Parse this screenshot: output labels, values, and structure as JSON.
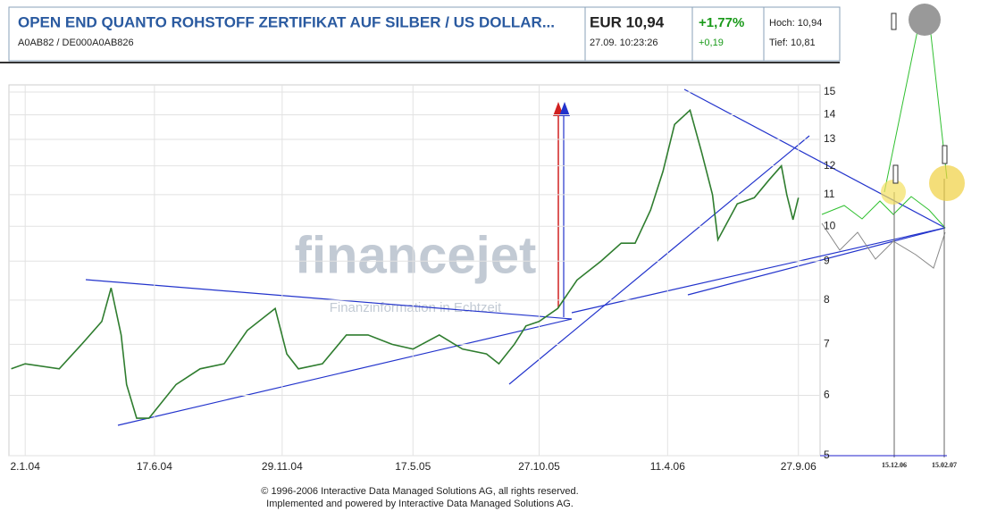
{
  "header": {
    "title": "OPEN END QUANTO ROHSTOFF ZERTIFIKAT AUF SILBER / US DOLLAR...",
    "ids": "A0AB82  /  DE000A0AB826",
    "price": "EUR 10,94",
    "time": "27.09. 10:23:26",
    "change_pct": "+1,77%",
    "change_abs": "+0,19",
    "high": "Hoch: 10,94",
    "low": "Tief: 10,81"
  },
  "chart_data": {
    "type": "line",
    "color": "#2f7d2f",
    "log_scale": true,
    "grid": true,
    "watermark": "financejet",
    "watermark_sub": "Finanzinformation in Echtzeit",
    "x": [
      "2003-12-15",
      "2004-01-02",
      "2004-02-15",
      "2004-03-15",
      "2004-04-10",
      "2004-04-22",
      "2004-05-05",
      "2004-05-12",
      "2004-05-25",
      "2004-06-10",
      "2004-07-15",
      "2004-08-15",
      "2004-09-15",
      "2004-10-15",
      "2004-11-20",
      "2004-12-05",
      "2004-12-20",
      "2005-01-20",
      "2005-02-20",
      "2005-03-20",
      "2005-04-20",
      "2005-05-17",
      "2005-06-20",
      "2005-07-20",
      "2005-08-20",
      "2005-09-05",
      "2005-09-25",
      "2005-10-10",
      "2005-10-27",
      "2005-11-20",
      "2005-12-15",
      "2006-01-15",
      "2006-02-10",
      "2006-02-28",
      "2006-03-20",
      "2006-04-05",
      "2006-04-20",
      "2006-05-10",
      "2006-05-25",
      "2006-06-08",
      "2006-06-15",
      "2006-07-10",
      "2006-08-01",
      "2006-08-20",
      "2006-09-05",
      "2006-09-12",
      "2006-09-20",
      "2006-09-27"
    ],
    "values": [
      6.5,
      6.6,
      6.5,
      7.0,
      7.5,
      8.3,
      7.2,
      6.2,
      5.6,
      5.6,
      6.2,
      6.5,
      6.6,
      7.3,
      7.8,
      6.8,
      6.5,
      6.6,
      7.2,
      7.2,
      7.0,
      6.9,
      7.2,
      6.9,
      6.8,
      6.6,
      7.0,
      7.4,
      7.5,
      7.8,
      8.5,
      9.0,
      9.5,
      9.5,
      10.5,
      11.8,
      13.6,
      14.2,
      12.5,
      11.0,
      9.6,
      10.7,
      10.9,
      11.5,
      12.0,
      11.0,
      10.2,
      10.9
    ],
    "xlim": [
      "2003-12-12",
      "2006-10-25"
    ],
    "xticks": [
      {
        "value": "2004-01-02",
        "label": "2.1.04"
      },
      {
        "value": "2004-06-17",
        "label": "17.6.04"
      },
      {
        "value": "2004-11-29",
        "label": "29.11.04"
      },
      {
        "value": "2005-05-17",
        "label": "17.5.05"
      },
      {
        "value": "2005-10-27",
        "label": "27.10.05"
      },
      {
        "value": "2006-04-11",
        "label": "11.4.06"
      },
      {
        "value": "2006-09-27",
        "label": "27.9.06"
      }
    ],
    "ylim": [
      5,
      15
    ],
    "yticks": [
      5,
      6,
      7,
      8,
      9,
      10,
      11,
      12,
      13,
      14,
      15
    ],
    "annotations": [
      "15.12.06",
      "15.02.07"
    ]
  },
  "footer": [
    "© 1996-2006 Interactive Data Managed Solutions AG, all rights reserved.",
    "Implemented and powered by Interactive Data Managed Solutions AG."
  ]
}
